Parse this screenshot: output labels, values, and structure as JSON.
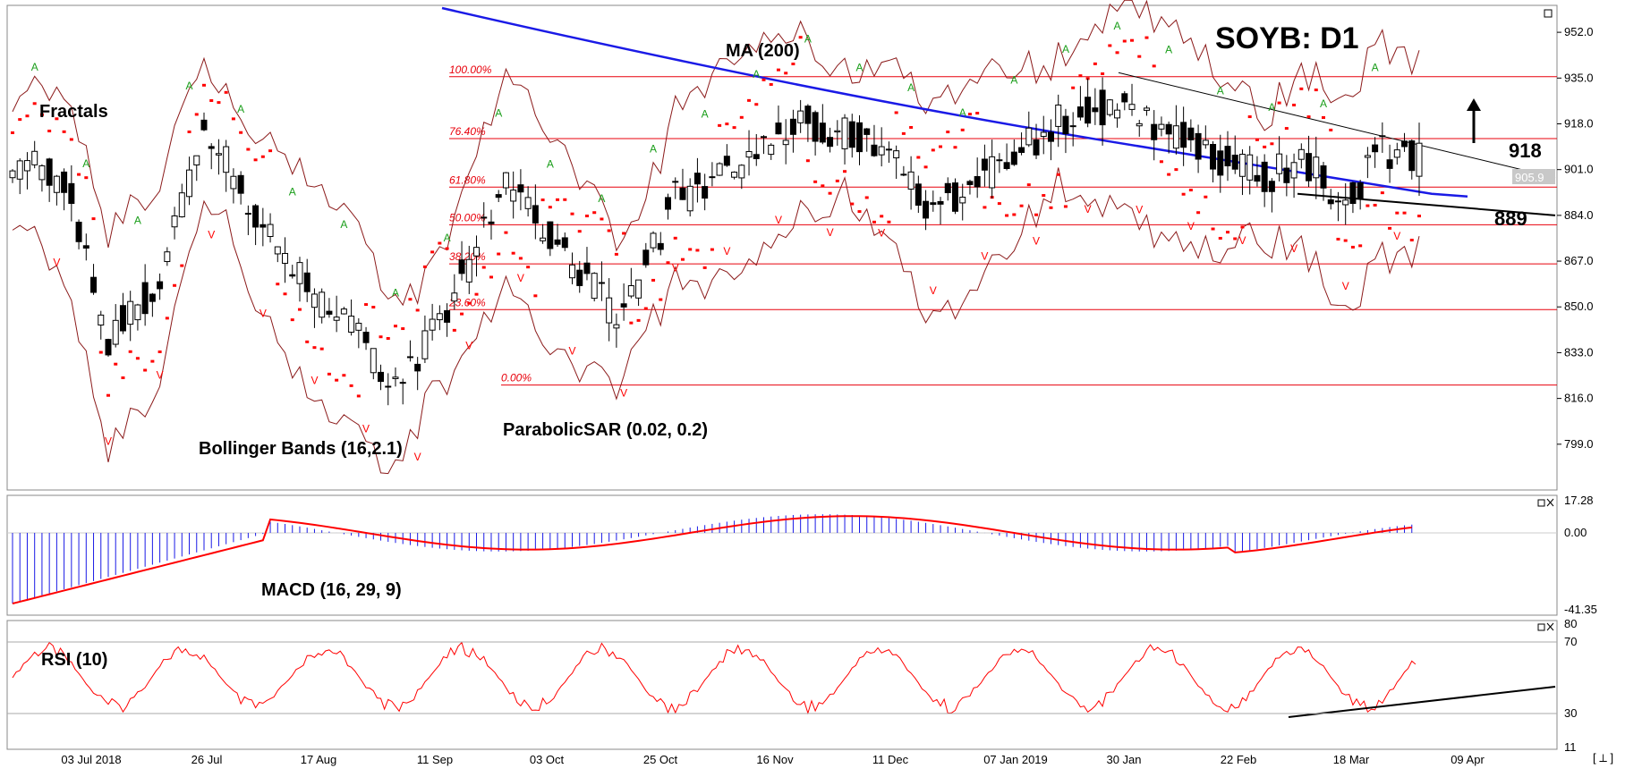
{
  "title": "SOYB: D1",
  "price_tag": "905.9",
  "levels": {
    "resistance": "918",
    "support": "889"
  },
  "annotations": {
    "fractals": "Fractals",
    "ma": "MA (200)",
    "bollinger": "Bollinger Bands (16,2.1)",
    "sar": "ParabolicSAR (0.02, 0.2)",
    "macd": "MACD (16, 29, 9)",
    "rsi": "RSI (10)"
  },
  "fib_labels": [
    "100.00%",
    "76.40%",
    "61.80%",
    "50.00%",
    "38.20%",
    "23.60%",
    "0.00%"
  ],
  "colors": {
    "fib": "#e8000b",
    "ma": "#1a1ae6",
    "bands": "#8b1a1a",
    "sar": "#ff0000",
    "fractal_up": "#1a9e1a",
    "fractal_down": "#ff0000",
    "macd_hist": "#1a1ae6",
    "macd_signal": "#ff0000",
    "rsi": "#ff0000"
  },
  "icons": {
    "corner": "close-x-icon",
    "window": "restore-icon",
    "arrow": "up-arrow-icon"
  },
  "chart_data": {
    "type": "candlestick",
    "x_dates": [
      "03 Jul 2018",
      "26 Jul",
      "17 Aug",
      "11 Sep",
      "03 Oct",
      "25 Oct",
      "16 Nov",
      "11 Dec",
      "07 Jan 2019",
      "30 Jan",
      "22 Feb",
      "18 Mar",
      "09 Apr"
    ],
    "y_ticks": [
      "952.0",
      "935.0",
      "918.0",
      "901.0",
      "884.0",
      "867.0",
      "850.0",
      "833.0",
      "816.0",
      "799.0"
    ],
    "ylim": [
      782,
      962
    ],
    "fib_levels": [
      935.5,
      912.5,
      894.5,
      880.5,
      866,
      849,
      821
    ],
    "macd": {
      "ticks": [
        "17.28",
        "0.00",
        "-41.35"
      ],
      "ylim": [
        -41.35,
        17.28
      ]
    },
    "rsi": {
      "ticks": [
        "80",
        "70",
        "30",
        "11"
      ],
      "ylim": [
        11,
        80
      ]
    }
  },
  "footer_icon": "[ ⟂ ]"
}
